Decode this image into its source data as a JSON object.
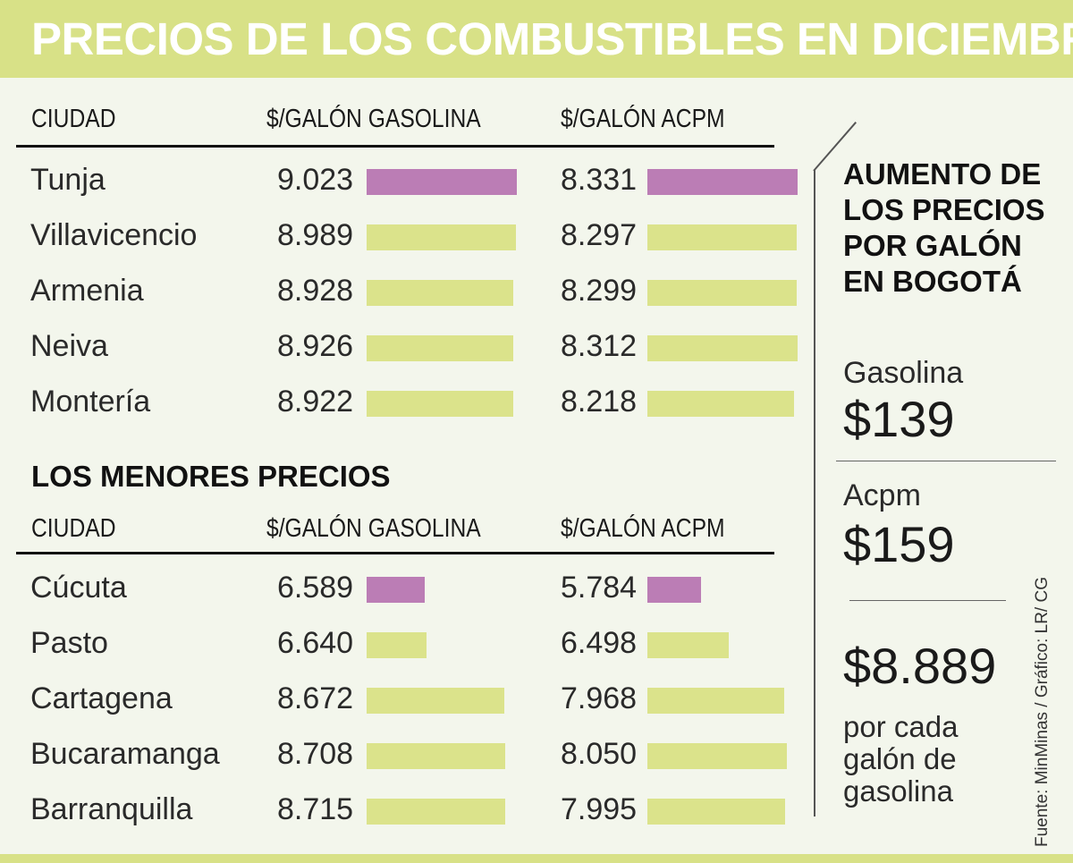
{
  "header": {
    "title": "PRECIOS DE LOS COMBUSTIBLES EN DICIEMBRE"
  },
  "colors": {
    "highlight": "#bb7db5",
    "bar": "#dbe38b",
    "header_bg": "#d8e187"
  },
  "chart_data": [
    {
      "type": "bar",
      "title": "",
      "columns": [
        "CIUDAD",
        "$/GALÓN GASOLINA",
        "$/GALÓN ACPM"
      ],
      "categories": [
        "Tunja",
        "Villavicencio",
        "Armenia",
        "Neiva",
        "Montería"
      ],
      "series": [
        {
          "name": "$/GALÓN GASOLINA",
          "values": [
            9023,
            8989,
            8928,
            8926,
            8922
          ],
          "labels": [
            "9.023",
            "8.989",
            "8.928",
            "8.926",
            "8.922"
          ]
        },
        {
          "name": "$/GALÓN ACPM",
          "values": [
            8331,
            8297,
            8299,
            8312,
            8218
          ],
          "labels": [
            "8.331",
            "8.297",
            "8.299",
            "8.312",
            "8.218"
          ]
        }
      ],
      "highlight_index": 0
    },
    {
      "type": "bar",
      "title": "LOS MENORES PRECIOS",
      "columns": [
        "CIUDAD",
        "$/GALÓN GASOLINA",
        "$/GALÓN ACPM"
      ],
      "categories": [
        "Cúcuta",
        "Pasto",
        "Cartagena",
        "Bucaramanga",
        "Barranquilla"
      ],
      "series": [
        {
          "name": "$/GALÓN GASOLINA",
          "values": [
            6589,
            6640,
            8672,
            8708,
            8715
          ],
          "labels": [
            "6.589",
            "6.640",
            "8.672",
            "8.708",
            "8.715"
          ]
        },
        {
          "name": "$/GALÓN ACPM",
          "values": [
            5784,
            6498,
            7968,
            8050,
            7995
          ],
          "labels": [
            "5.784",
            "6.498",
            "7.968",
            "8.050",
            "7.995"
          ]
        }
      ],
      "highlight_index": 0
    }
  ],
  "sidebar": {
    "heading": "AUMENTO DE LOS PRECIOS POR GALÓN EN BOGOTÁ",
    "gasolina_label": "Gasolina",
    "gasolina_value": "$139",
    "acpm_label": "Acpm",
    "acpm_value": "$159",
    "price_value": "$8.889",
    "price_desc": "por cada galón de gasolina"
  },
  "source": "Fuente: MinMinas / Gráfico: LR/ CG"
}
